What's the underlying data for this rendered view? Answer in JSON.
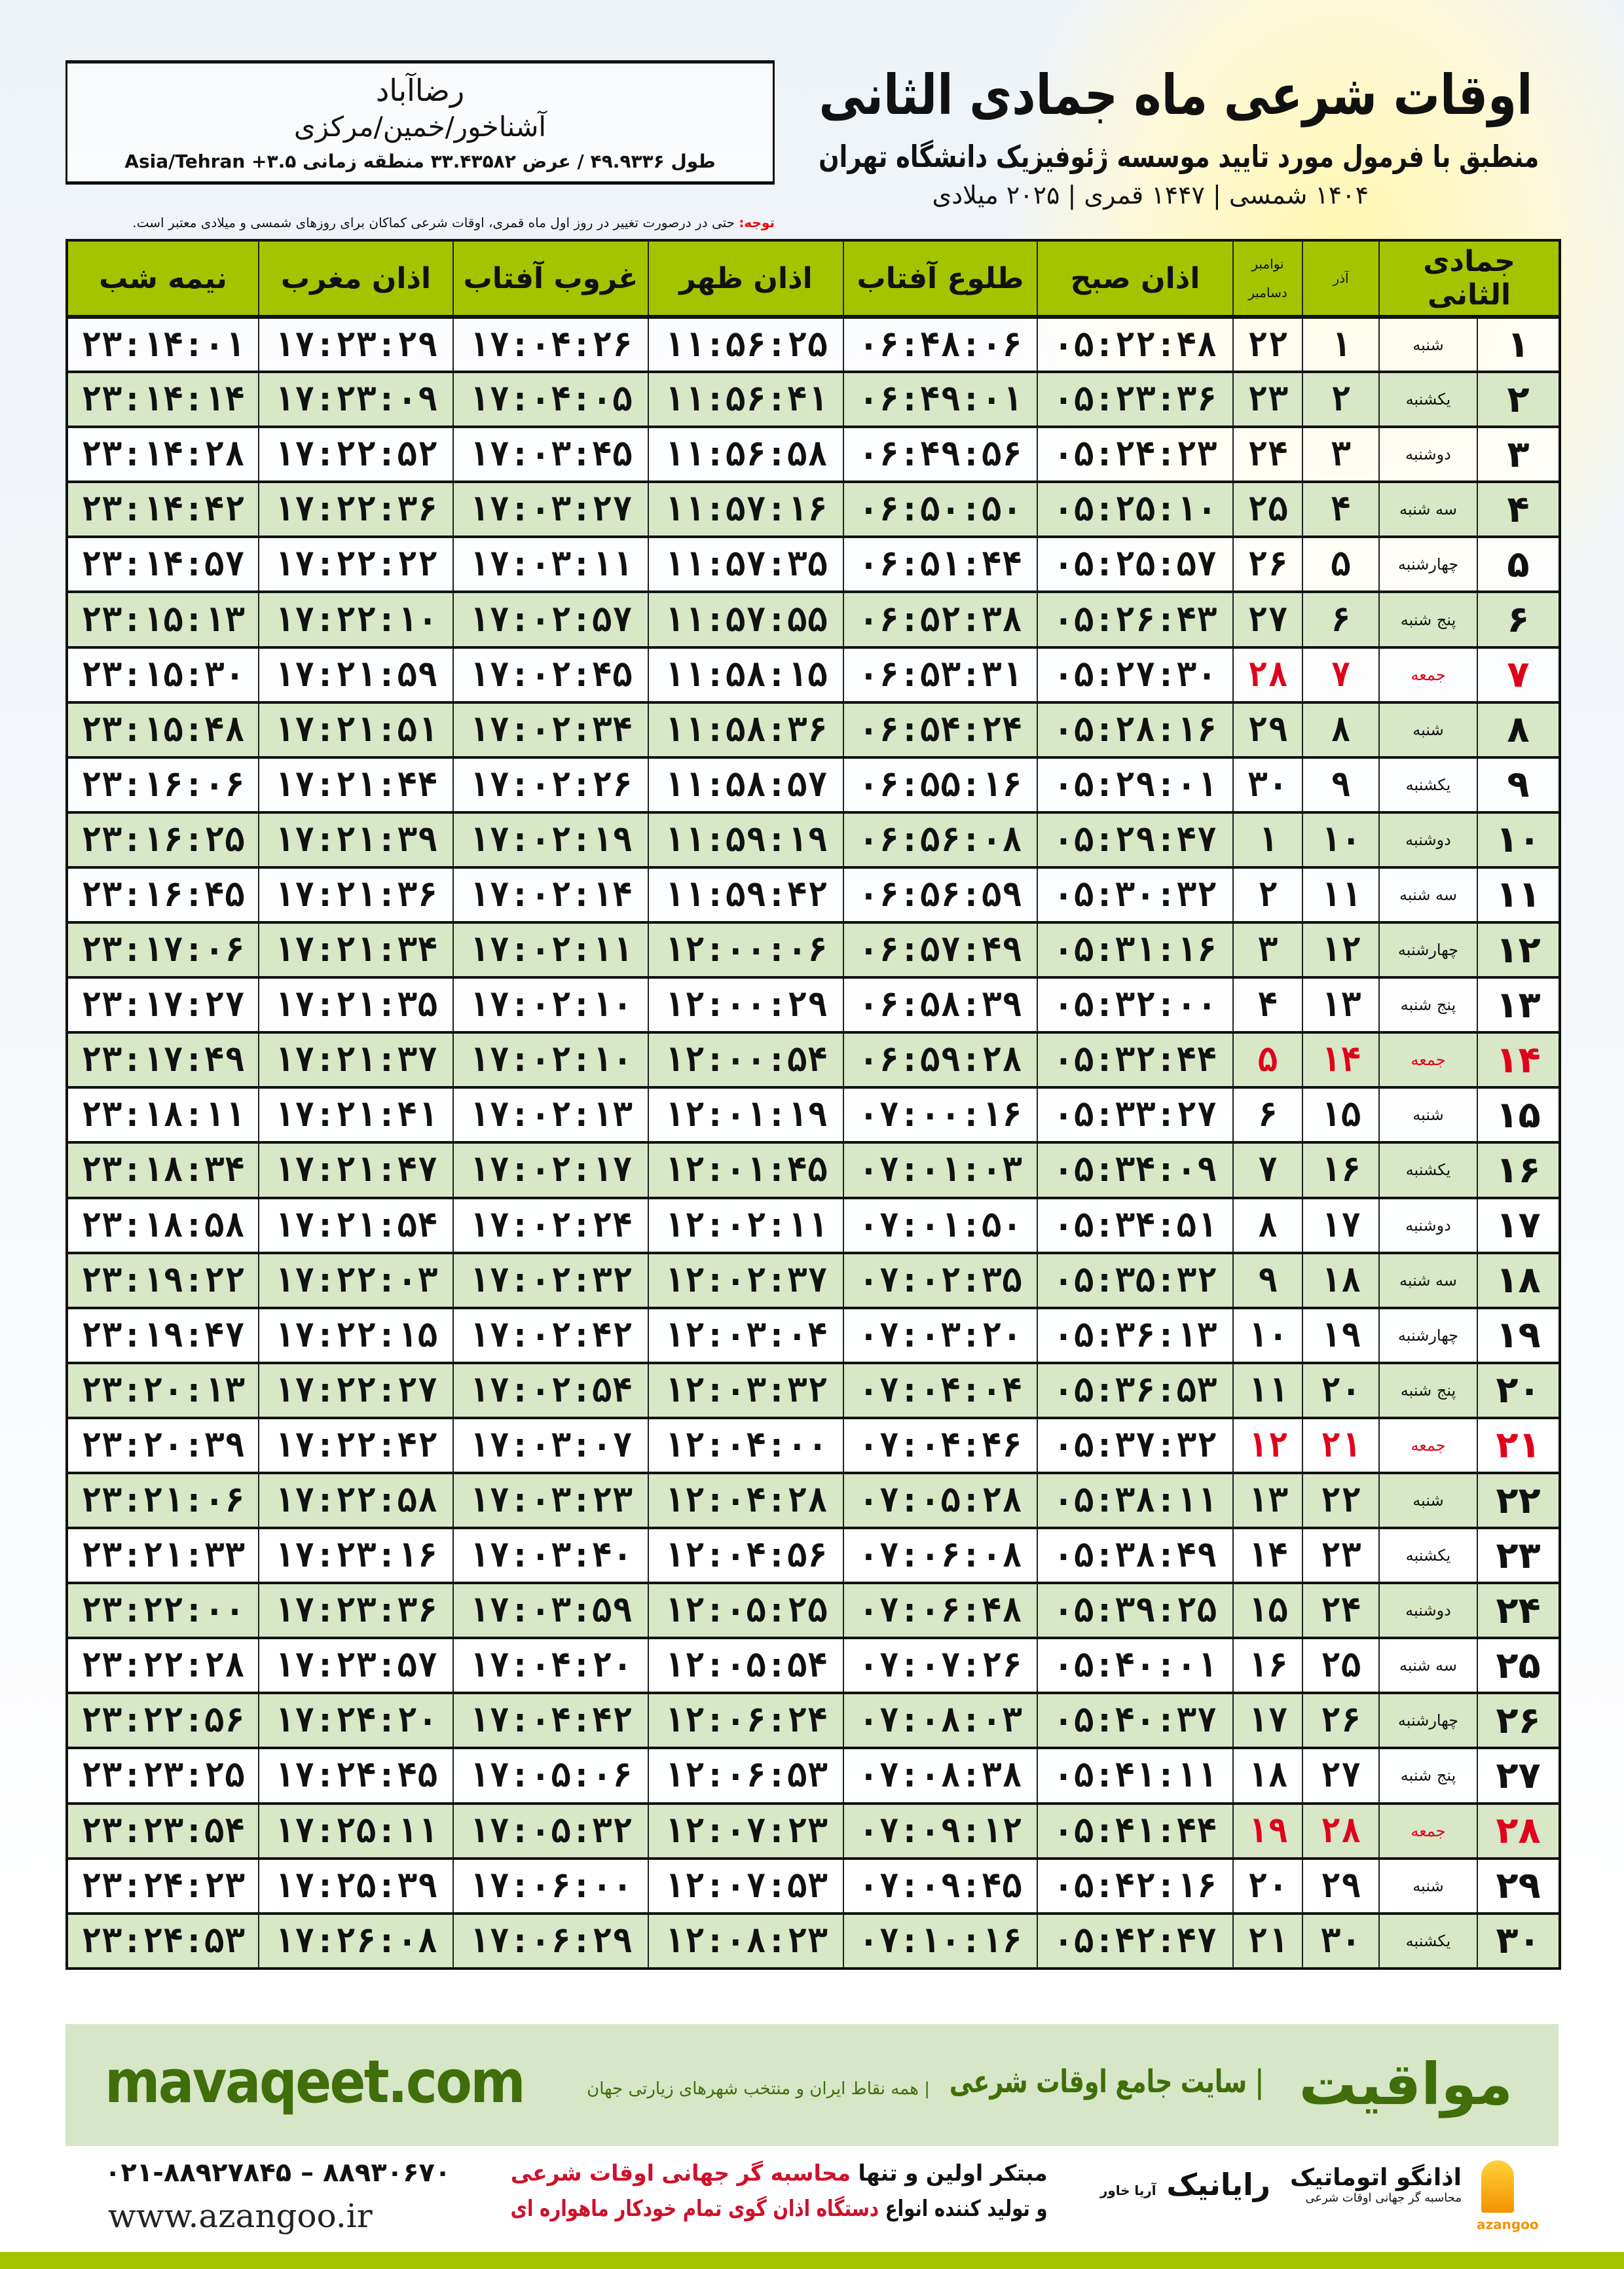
{
  "header": {
    "title": "اوقات شرعی ماه جمادی الثانی",
    "subtitle": "منطبق با فرمول مورد تایید موسسه ژئوفیزیک دانشگاه تهران",
    "dates": "۱۴۰۴ شمسی | ۱۴۴۷ قمری | ۲۰۲۵ میلادی",
    "note_label": "توجه:",
    "note_text": " حتی در درصورت تغییر در روز اول ماه قمری، اوقات شرعی کماکان برای روزهای شمسی و میلادی معتبر است."
  },
  "location": {
    "city": "رضاآباد",
    "region": "آشناخور/خمین/مرکزی",
    "coords": "طول ۴۹.۹۳۳۶ / عرض ۳۳.۴۳۵۸۲ منطقه زمانی ۳.۵+ Asia/Tehran"
  },
  "table": {
    "columns": {
      "month": "جمادی الثانی",
      "azar": "آذر",
      "nov": "نوامبر",
      "dec": "دسامبر",
      "sobh": "اذان صبح",
      "tolu": "طلوع آفتاب",
      "zohr": "اذان ظهر",
      "ghoroob": "غروب آفتاب",
      "maghrib": "اذان مغرب",
      "nimeh": "نیمه شب"
    },
    "holiday_color": "#e0001b",
    "header_color": "#a5c400",
    "rows": [
      {
        "day": "۱",
        "wd": "شنبه",
        "azar": "۱",
        "greg": "۲۲",
        "sobh": "۰۵:۲۲:۴۸",
        "tolu": "۰۶:۴۸:۰۶",
        "zohr": "۱۱:۵۶:۲۵",
        "ghoroob": "۱۷:۰۴:۲۶",
        "maghrib": "۱۷:۲۳:۲۹",
        "nimeh": "۲۳:۱۴:۰۱"
      },
      {
        "day": "۲",
        "wd": "یکشنبه",
        "azar": "۲",
        "greg": "۲۳",
        "sobh": "۰۵:۲۳:۳۶",
        "tolu": "۰۶:۴۹:۰۱",
        "zohr": "۱۱:۵۶:۴۱",
        "ghoroob": "۱۷:۰۴:۰۵",
        "maghrib": "۱۷:۲۳:۰۹",
        "nimeh": "۲۳:۱۴:۱۴"
      },
      {
        "day": "۳",
        "wd": "دوشنبه",
        "azar": "۳",
        "greg": "۲۴",
        "sobh": "۰۵:۲۴:۲۳",
        "tolu": "۰۶:۴۹:۵۶",
        "zohr": "۱۱:۵۶:۵۸",
        "ghoroob": "۱۷:۰۳:۴۵",
        "maghrib": "۱۷:۲۲:۵۲",
        "nimeh": "۲۳:۱۴:۲۸"
      },
      {
        "day": "۴",
        "wd": "سه شنبه",
        "azar": "۴",
        "greg": "۲۵",
        "sobh": "۰۵:۲۵:۱۰",
        "tolu": "۰۶:۵۰:۵۰",
        "zohr": "۱۱:۵۷:۱۶",
        "ghoroob": "۱۷:۰۳:۲۷",
        "maghrib": "۱۷:۲۲:۳۶",
        "nimeh": "۲۳:۱۴:۴۲"
      },
      {
        "day": "۵",
        "wd": "چهارشنبه",
        "azar": "۵",
        "greg": "۲۶",
        "sobh": "۰۵:۲۵:۵۷",
        "tolu": "۰۶:۵۱:۴۴",
        "zohr": "۱۱:۵۷:۳۵",
        "ghoroob": "۱۷:۰۳:۱۱",
        "maghrib": "۱۷:۲۲:۲۲",
        "nimeh": "۲۳:۱۴:۵۷"
      },
      {
        "day": "۶",
        "wd": "پنج شنبه",
        "azar": "۶",
        "greg": "۲۷",
        "sobh": "۰۵:۲۶:۴۳",
        "tolu": "۰۶:۵۲:۳۸",
        "zohr": "۱۱:۵۷:۵۵",
        "ghoroob": "۱۷:۰۲:۵۷",
        "maghrib": "۱۷:۲۲:۱۰",
        "nimeh": "۲۳:۱۵:۱۳"
      },
      {
        "day": "۷",
        "wd": "جمعه",
        "azar": "۷",
        "greg": "۲۸",
        "holiday": true,
        "sobh": "۰۵:۲۷:۳۰",
        "tolu": "۰۶:۵۳:۳۱",
        "zohr": "۱۱:۵۸:۱۵",
        "ghoroob": "۱۷:۰۲:۴۵",
        "maghrib": "۱۷:۲۱:۵۹",
        "nimeh": "۲۳:۱۵:۳۰"
      },
      {
        "day": "۸",
        "wd": "شنبه",
        "azar": "۸",
        "greg": "۲۹",
        "sobh": "۰۵:۲۸:۱۶",
        "tolu": "۰۶:۵۴:۲۴",
        "zohr": "۱۱:۵۸:۳۶",
        "ghoroob": "۱۷:۰۲:۳۴",
        "maghrib": "۱۷:۲۱:۵۱",
        "nimeh": "۲۳:۱۵:۴۸"
      },
      {
        "day": "۹",
        "wd": "یکشنبه",
        "azar": "۹",
        "greg": "۳۰",
        "sobh": "۰۵:۲۹:۰۱",
        "tolu": "۰۶:۵۵:۱۶",
        "zohr": "۱۱:۵۸:۵۷",
        "ghoroob": "۱۷:۰۲:۲۶",
        "maghrib": "۱۷:۲۱:۴۴",
        "nimeh": "۲۳:۱۶:۰۶"
      },
      {
        "day": "۱۰",
        "wd": "دوشنبه",
        "azar": "۱۰",
        "greg": "۱",
        "sobh": "۰۵:۲۹:۴۷",
        "tolu": "۰۶:۵۶:۰۸",
        "zohr": "۱۱:۵۹:۱۹",
        "ghoroob": "۱۷:۰۲:۱۹",
        "maghrib": "۱۷:۲۱:۳۹",
        "nimeh": "۲۳:۱۶:۲۵"
      },
      {
        "day": "۱۱",
        "wd": "سه شنبه",
        "azar": "۱۱",
        "greg": "۲",
        "sobh": "۰۵:۳۰:۳۲",
        "tolu": "۰۶:۵۶:۵۹",
        "zohr": "۱۱:۵۹:۴۲",
        "ghoroob": "۱۷:۰۲:۱۴",
        "maghrib": "۱۷:۲۱:۳۶",
        "nimeh": "۲۳:۱۶:۴۵"
      },
      {
        "day": "۱۲",
        "wd": "چهارشنبه",
        "azar": "۱۲",
        "greg": "۳",
        "sobh": "۰۵:۳۱:۱۶",
        "tolu": "۰۶:۵۷:۴۹",
        "zohr": "۱۲:۰۰:۰۶",
        "ghoroob": "۱۷:۰۲:۱۱",
        "maghrib": "۱۷:۲۱:۳۴",
        "nimeh": "۲۳:۱۷:۰۶"
      },
      {
        "day": "۱۳",
        "wd": "پنج شنبه",
        "azar": "۱۳",
        "greg": "۴",
        "sobh": "۰۵:۳۲:۰۰",
        "tolu": "۰۶:۵۸:۳۹",
        "zohr": "۱۲:۰۰:۲۹",
        "ghoroob": "۱۷:۰۲:۱۰",
        "maghrib": "۱۷:۲۱:۳۵",
        "nimeh": "۲۳:۱۷:۲۷"
      },
      {
        "day": "۱۴",
        "wd": "جمعه",
        "azar": "۱۴",
        "greg": "۵",
        "holiday": true,
        "sobh": "۰۵:۳۲:۴۴",
        "tolu": "۰۶:۵۹:۲۸",
        "zohr": "۱۲:۰۰:۵۴",
        "ghoroob": "۱۷:۰۲:۱۰",
        "maghrib": "۱۷:۲۱:۳۷",
        "nimeh": "۲۳:۱۷:۴۹"
      },
      {
        "day": "۱۵",
        "wd": "شنبه",
        "azar": "۱۵",
        "greg": "۶",
        "sobh": "۰۵:۳۳:۲۷",
        "tolu": "۰۷:۰۰:۱۶",
        "zohr": "۱۲:۰۱:۱۹",
        "ghoroob": "۱۷:۰۲:۱۳",
        "maghrib": "۱۷:۲۱:۴۱",
        "nimeh": "۲۳:۱۸:۱۱"
      },
      {
        "day": "۱۶",
        "wd": "یکشنبه",
        "azar": "۱۶",
        "greg": "۷",
        "sobh": "۰۵:۳۴:۰۹",
        "tolu": "۰۷:۰۱:۰۳",
        "zohr": "۱۲:۰۱:۴۵",
        "ghoroob": "۱۷:۰۲:۱۷",
        "maghrib": "۱۷:۲۱:۴۷",
        "nimeh": "۲۳:۱۸:۳۴"
      },
      {
        "day": "۱۷",
        "wd": "دوشنبه",
        "azar": "۱۷",
        "greg": "۸",
        "sobh": "۰۵:۳۴:۵۱",
        "tolu": "۰۷:۰۱:۵۰",
        "zohr": "۱۲:۰۲:۱۱",
        "ghoroob": "۱۷:۰۲:۲۴",
        "maghrib": "۱۷:۲۱:۵۴",
        "nimeh": "۲۳:۱۸:۵۸"
      },
      {
        "day": "۱۸",
        "wd": "سه شنبه",
        "azar": "۱۸",
        "greg": "۹",
        "sobh": "۰۵:۳۵:۳۲",
        "tolu": "۰۷:۰۲:۳۵",
        "zohr": "۱۲:۰۲:۳۷",
        "ghoroob": "۱۷:۰۲:۳۲",
        "maghrib": "۱۷:۲۲:۰۳",
        "nimeh": "۲۳:۱۹:۲۲"
      },
      {
        "day": "۱۹",
        "wd": "چهارشنبه",
        "azar": "۱۹",
        "greg": "۱۰",
        "sobh": "۰۵:۳۶:۱۳",
        "tolu": "۰۷:۰۳:۲۰",
        "zohr": "۱۲:۰۳:۰۴",
        "ghoroob": "۱۷:۰۲:۴۲",
        "maghrib": "۱۷:۲۲:۱۵",
        "nimeh": "۲۳:۱۹:۴۷"
      },
      {
        "day": "۲۰",
        "wd": "پنج شنبه",
        "azar": "۲۰",
        "greg": "۱۱",
        "sobh": "۰۵:۳۶:۵۳",
        "tolu": "۰۷:۰۴:۰۴",
        "zohr": "۱۲:۰۳:۳۲",
        "ghoroob": "۱۷:۰۲:۵۴",
        "maghrib": "۱۷:۲۲:۲۷",
        "nimeh": "۲۳:۲۰:۱۳"
      },
      {
        "day": "۲۱",
        "wd": "جمعه",
        "azar": "۲۱",
        "greg": "۱۲",
        "holiday": true,
        "sobh": "۰۵:۳۷:۳۲",
        "tolu": "۰۷:۰۴:۴۶",
        "zohr": "۱۲:۰۴:۰۰",
        "ghoroob": "۱۷:۰۳:۰۷",
        "maghrib": "۱۷:۲۲:۴۲",
        "nimeh": "۲۳:۲۰:۳۹"
      },
      {
        "day": "۲۲",
        "wd": "شنبه",
        "azar": "۲۲",
        "greg": "۱۳",
        "sobh": "۰۵:۳۸:۱۱",
        "tolu": "۰۷:۰۵:۲۸",
        "zohr": "۱۲:۰۴:۲۸",
        "ghoroob": "۱۷:۰۳:۲۳",
        "maghrib": "۱۷:۲۲:۵۸",
        "nimeh": "۲۳:۲۱:۰۶"
      },
      {
        "day": "۲۳",
        "wd": "یکشنبه",
        "azar": "۲۳",
        "greg": "۱۴",
        "sobh": "۰۵:۳۸:۴۹",
        "tolu": "۰۷:۰۶:۰۸",
        "zohr": "۱۲:۰۴:۵۶",
        "ghoroob": "۱۷:۰۳:۴۰",
        "maghrib": "۱۷:۲۳:۱۶",
        "nimeh": "۲۳:۲۱:۳۳"
      },
      {
        "day": "۲۴",
        "wd": "دوشنبه",
        "azar": "۲۴",
        "greg": "۱۵",
        "sobh": "۰۵:۳۹:۲۵",
        "tolu": "۰۷:۰۶:۴۸",
        "zohr": "۱۲:۰۵:۲۵",
        "ghoroob": "۱۷:۰۳:۵۹",
        "maghrib": "۱۷:۲۳:۳۶",
        "nimeh": "۲۳:۲۲:۰۰"
      },
      {
        "day": "۲۵",
        "wd": "سه شنبه",
        "azar": "۲۵",
        "greg": "۱۶",
        "sobh": "۰۵:۴۰:۰۱",
        "tolu": "۰۷:۰۷:۲۶",
        "zohr": "۱۲:۰۵:۵۴",
        "ghoroob": "۱۷:۰۴:۲۰",
        "maghrib": "۱۷:۲۳:۵۷",
        "nimeh": "۲۳:۲۲:۲۸"
      },
      {
        "day": "۲۶",
        "wd": "چهارشنبه",
        "azar": "۲۶",
        "greg": "۱۷",
        "sobh": "۰۵:۴۰:۳۷",
        "tolu": "۰۷:۰۸:۰۳",
        "zohr": "۱۲:۰۶:۲۴",
        "ghoroob": "۱۷:۰۴:۴۲",
        "maghrib": "۱۷:۲۴:۲۰",
        "nimeh": "۲۳:۲۲:۵۶"
      },
      {
        "day": "۲۷",
        "wd": "پنج شنبه",
        "azar": "۲۷",
        "greg": "۱۸",
        "sobh": "۰۵:۴۱:۱۱",
        "tolu": "۰۷:۰۸:۳۸",
        "zohr": "۱۲:۰۶:۵۳",
        "ghoroob": "۱۷:۰۵:۰۶",
        "maghrib": "۱۷:۲۴:۴۵",
        "nimeh": "۲۳:۲۳:۲۵"
      },
      {
        "day": "۲۸",
        "wd": "جمعه",
        "azar": "۲۸",
        "greg": "۱۹",
        "holiday": true,
        "sobh": "۰۵:۴۱:۴۴",
        "tolu": "۰۷:۰۹:۱۲",
        "zohr": "۱۲:۰۷:۲۳",
        "ghoroob": "۱۷:۰۵:۳۲",
        "maghrib": "۱۷:۲۵:۱۱",
        "nimeh": "۲۳:۲۳:۵۴"
      },
      {
        "day": "۲۹",
        "wd": "شنبه",
        "azar": "۲۹",
        "greg": "۲۰",
        "sobh": "۰۵:۴۲:۱۶",
        "tolu": "۰۷:۰۹:۴۵",
        "zohr": "۱۲:۰۷:۵۳",
        "ghoroob": "۱۷:۰۶:۰۰",
        "maghrib": "۱۷:۲۵:۳۹",
        "nimeh": "۲۳:۲۴:۲۳"
      },
      {
        "day": "۳۰",
        "wd": "یکشنبه",
        "azar": "۳۰",
        "greg": "۲۱",
        "sobh": "۰۵:۴۲:۴۷",
        "tolu": "۰۷:۱۰:۱۶",
        "zohr": "۱۲:۰۸:۲۳",
        "ghoroob": "۱۷:۰۶:۲۹",
        "maghrib": "۱۷:۲۶:۰۸",
        "nimeh": "۲۳:۲۴:۵۳"
      }
    ]
  },
  "band": {
    "logo": "مواقیت",
    "tagline": "| سایت جامع اوقات شرعی",
    "sub": "| همه نقاط ایران و منتخب شهرهای زیارتی جهان",
    "url": "mavaqeet.com",
    "color": "#3f6e0a"
  },
  "footer": {
    "phone": "۰۲۱-۸۸۹۲۷۸۴۵ – ۸۸۹۳۰۶۷۰",
    "site": "www.azangoo.ir",
    "promo1_a": "مبتکر اولین و تنها ",
    "promo1_b": "محاسبه گر جهانی اوقات شرعی",
    "promo2_a": "و تولید کننده انواع ",
    "promo2_b": "دستگاه اذان گوی تمام خودکار ماهواره ای",
    "logo_rayanik": "رایانیک",
    "logo_rayanik_sub": "آریا خاور",
    "logo_azangoo": "اذانگو اتوماتیک",
    "logo_azangoo_sub": "محاسبه گر جهانی اوقات شرعی",
    "logo_azangoo_en": "azangoo"
  }
}
